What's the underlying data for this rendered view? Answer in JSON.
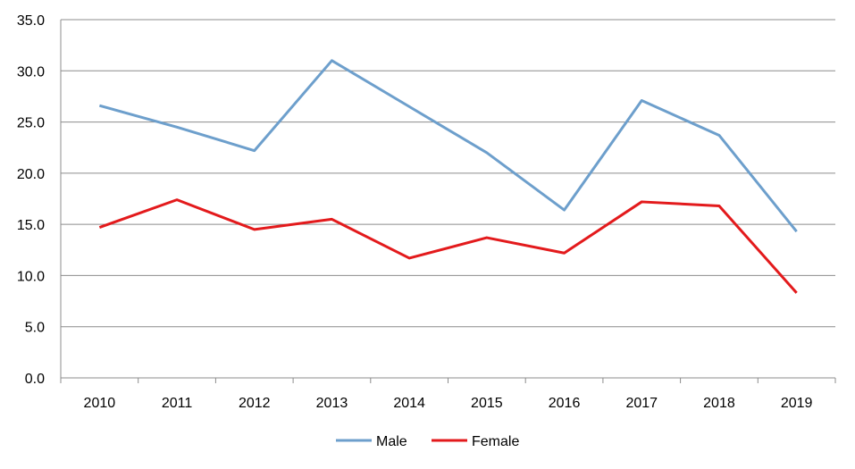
{
  "chart_data": {
    "type": "line",
    "title": "",
    "xlabel": "",
    "ylabel": "",
    "categories": [
      "2010",
      "2011",
      "2012",
      "2013",
      "2014",
      "2015",
      "2016",
      "2017",
      "2018",
      "2019"
    ],
    "ylim": [
      0,
      35
    ],
    "ytick_step": 5,
    "ytick_labels": [
      "0.0",
      "5.0",
      "10.0",
      "15.0",
      "20.0",
      "25.0",
      "30.0",
      "35.0"
    ],
    "grid": "horizontal",
    "legend_position": "bottom",
    "series": [
      {
        "name": "Male",
        "color": "#6d9fcc",
        "values": [
          26.6,
          24.5,
          22.2,
          31.0,
          26.5,
          22.0,
          16.4,
          27.1,
          23.7,
          14.3
        ]
      },
      {
        "name": "Female",
        "color": "#e31a1c",
        "values": [
          14.7,
          17.4,
          14.5,
          15.5,
          11.7,
          13.7,
          12.2,
          17.2,
          16.8,
          8.3
        ]
      }
    ]
  }
}
